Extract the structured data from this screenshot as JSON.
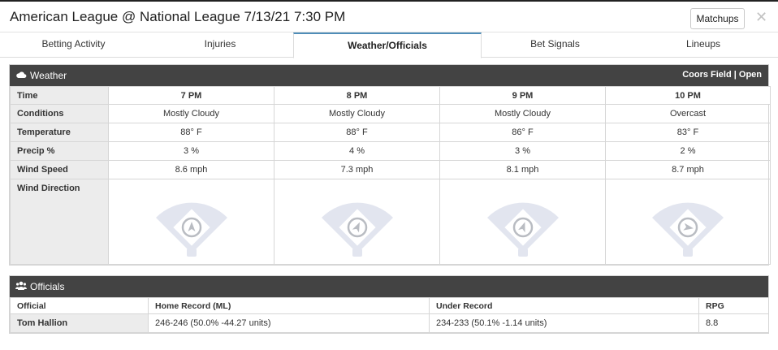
{
  "header": {
    "title": "American League @ National League 7/13/21 7:30 PM",
    "matchups_label": "Matchups",
    "close_glyph": "✕"
  },
  "tabs": [
    {
      "label": "Betting Activity",
      "active": false
    },
    {
      "label": "Injuries",
      "active": false
    },
    {
      "label": "Weather/Officials",
      "active": true
    },
    {
      "label": "Bet Signals",
      "active": false
    },
    {
      "label": "Lineups",
      "active": false
    }
  ],
  "weather": {
    "title": "Weather",
    "icon": "cloud-icon",
    "venue": "Coors Field | Open",
    "row_labels": {
      "time": "Time",
      "conditions": "Conditions",
      "temperature": "Temperature",
      "precip": "Precip %",
      "wind_speed": "Wind Speed",
      "wind_direction": "Wind Direction"
    },
    "hours": [
      {
        "time": "7 PM",
        "conditions": "Mostly Cloudy",
        "temperature": "88° F",
        "precip": "3 %",
        "wind_speed": "8.6 mph",
        "wind_arrow_deg": 0
      },
      {
        "time": "8 PM",
        "conditions": "Mostly Cloudy",
        "temperature": "88° F",
        "precip": "4 %",
        "wind_speed": "7.3 mph",
        "wind_arrow_deg": 25
      },
      {
        "time": "9 PM",
        "conditions": "Mostly Cloudy",
        "temperature": "86° F",
        "precip": "3 %",
        "wind_speed": "8.1 mph",
        "wind_arrow_deg": 20
      },
      {
        "time": "10 PM",
        "conditions": "Overcast",
        "temperature": "83° F",
        "precip": "2 %",
        "wind_speed": "8.7 mph",
        "wind_arrow_deg": 100
      }
    ]
  },
  "officials": {
    "title": "Officials",
    "icon": "users-icon",
    "columns": {
      "official": "Official",
      "home_record": "Home Record (ML)",
      "under_record": "Under Record",
      "rpg": "RPG"
    },
    "rows": [
      {
        "official": "Tom Hallion",
        "home_record": "246-246 (50.0% -44.27 units)",
        "under_record": "234-233 (50.1% -1.14 units)",
        "rpg": "8.8"
      }
    ]
  },
  "colors": {
    "panel_header": "#434343",
    "active_tab_accent": "#4f8db8",
    "field_fill": "#e2e5ef",
    "arrow": "#b9bcc2"
  }
}
